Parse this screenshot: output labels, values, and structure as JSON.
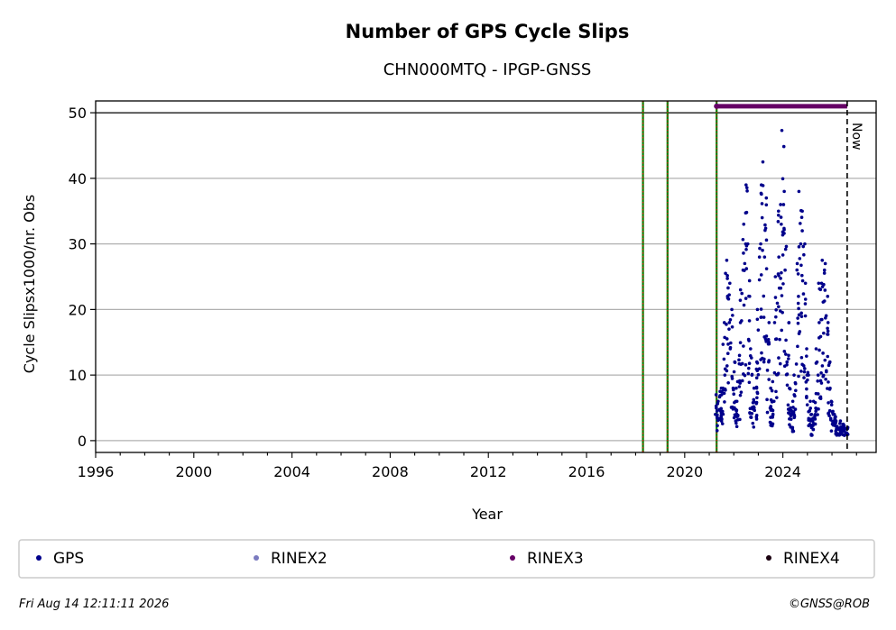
{
  "chart_data": {
    "type": "scatter",
    "title": "Number of GPS Cycle Slips",
    "subtitle": "CHN000MTQ - IPGP-GNSS",
    "xlabel": "Year",
    "ylabel": "Cycle Slipsx1000/nr. Obs",
    "xlim": [
      1996.0,
      2027.8
    ],
    "ylim": [
      -1.8,
      51.8
    ],
    "x_ticks": [
      "1996",
      "2000",
      "2004",
      "2008",
      "2012",
      "2016",
      "2020",
      "2024"
    ],
    "y_ticks": [
      "0",
      "10",
      "20",
      "30",
      "40",
      "50"
    ],
    "grid": "horizontal",
    "reference_line_y": 50,
    "equipment_change_lines": [
      2018.3,
      2019.3,
      2021.3
    ],
    "now_year": 2026.62,
    "now_label": "Now",
    "rinex3_coverage": [
      2021.3,
      2026.62
    ],
    "series": [
      {
        "name": "GPS",
        "color": "#00008b",
        "x": [
          2021.3,
          2021.4,
          2021.5,
          2021.6,
          2021.7,
          2021.8,
          2021.9,
          2022.0,
          2022.1,
          2022.2,
          2022.3,
          2022.4,
          2022.5,
          2022.6,
          2022.7,
          2022.8,
          2022.9,
          2023.0,
          2023.1,
          2023.2,
          2023.3,
          2023.4,
          2023.5,
          2023.6,
          2023.7,
          2023.8,
          2023.9,
          2024.0,
          2024.1,
          2024.2,
          2024.3,
          2024.4,
          2024.5,
          2024.6,
          2024.7,
          2024.8,
          2024.9,
          2025.0,
          2025.1,
          2025.2,
          2025.3,
          2025.4,
          2025.5,
          2025.6,
          2025.7,
          2025.8,
          2025.9,
          2026.0,
          2026.1,
          2026.2,
          2026.3,
          2026.4,
          2026.5,
          2026.6
        ],
        "y": [
          4,
          6,
          7,
          10,
          22,
          18,
          14,
          8,
          6,
          9,
          18,
          26,
          30,
          22,
          10,
          5,
          8,
          20,
          30,
          34,
          28,
          12,
          5,
          6,
          18,
          28,
          33,
          36,
          26,
          12,
          5,
          4,
          7,
          22,
          30,
          32,
          24,
          10,
          3,
          2,
          4,
          10,
          18,
          24,
          26,
          18,
          8,
          4,
          3,
          2,
          2,
          1.5,
          1.5,
          1.2
        ],
        "upper_envelope": [
          7,
          7.5,
          8,
          18,
          27.5,
          24,
          20,
          12,
          8,
          13,
          23,
          33,
          39,
          30,
          14,
          8,
          12,
          28,
          39,
          42.5,
          37,
          18,
          8,
          9,
          25,
          35,
          36,
          47.3,
          38,
          18,
          8,
          6,
          10,
          27,
          38,
          35,
          30,
          14,
          6,
          4,
          6,
          14,
          24,
          27.5,
          27,
          22,
          12,
          6,
          4,
          3,
          3,
          2.5,
          2.5,
          2
        ]
      }
    ],
    "legend": [
      "GPS",
      "RINEX2",
      "RINEX3",
      "RINEX4"
    ],
    "legend_colors": [
      "#00008b",
      "#7b7bbf",
      "#660066",
      "#1a0010"
    ],
    "legend_placement": "bottom"
  },
  "footer": {
    "timestamp": "Fri Aug 14 12:11:11 2026",
    "copyright": "©GNSS@ROB"
  }
}
